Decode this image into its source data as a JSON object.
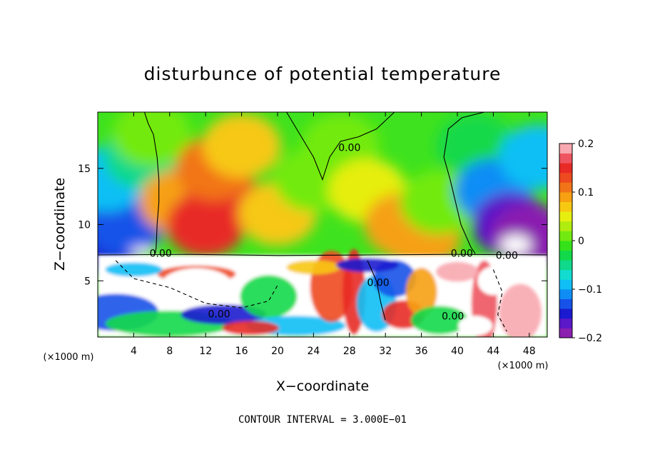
{
  "chart_data": {
    "type": "heatmap",
    "title": "disturbunce of potential temperature",
    "xlabel": "X−coordinate",
    "ylabel": "Z−coordinate",
    "x_unit": "(×1000 m)",
    "y_unit": "(×1000 m)",
    "xlim": [
      0,
      50
    ],
    "ylim": [
      0,
      20
    ],
    "x_ticks": [
      4,
      8,
      12,
      16,
      20,
      24,
      28,
      32,
      36,
      40,
      44,
      48
    ],
    "x_tick_labels": [
      "4",
      "8",
      "12",
      "16",
      "20",
      "24",
      "28",
      "32",
      "36",
      "40",
      "44",
      "48"
    ],
    "y_ticks": [
      5,
      10,
      15
    ],
    "y_tick_labels": [
      "5",
      "10",
      "15"
    ],
    "colorbar": {
      "range": [
        -0.2,
        0.2
      ],
      "ticks": [
        0.2,
        0.1,
        0,
        -0.1,
        -0.2
      ],
      "tick_labels": [
        "0.2",
        "0.1",
        "0",
        "−0.1",
        "−0.2"
      ],
      "colors": [
        "#8a1fb0",
        "#5a18c8",
        "#1a1ad0",
        "#1652e8",
        "#0f8df5",
        "#10bff5",
        "#12dcd0",
        "#10d98c",
        "#12d94a",
        "#35e21a",
        "#72ea10",
        "#b0ec10",
        "#e6ee10",
        "#f7c812",
        "#f6a012",
        "#f27418",
        "#ee4a20",
        "#e82a26",
        "#ee5560",
        "#f8a8b0"
      ]
    },
    "contour_label": "0.00",
    "contour_interval_note": "CONTOUR INTERVAL = 3.000E−01",
    "upper_layer_field": [
      {
        "x": 1,
        "z": 8.5,
        "v": -0.15
      },
      {
        "x": 3,
        "z": 10,
        "v": -0.14
      },
      {
        "x": 1,
        "z": 14,
        "v": -0.1
      },
      {
        "x": 5,
        "z": 16,
        "v": -0.05
      },
      {
        "x": 6,
        "z": 18,
        "v": 0.0
      },
      {
        "x": 9,
        "z": 12,
        "v": 0.09
      },
      {
        "x": 12,
        "z": 10,
        "v": 0.15
      },
      {
        "x": 14,
        "z": 12,
        "v": 0.14
      },
      {
        "x": 13,
        "z": 15,
        "v": 0.1
      },
      {
        "x": 16,
        "z": 17,
        "v": 0.06
      },
      {
        "x": 20,
        "z": 11,
        "v": 0.06
      },
      {
        "x": 24,
        "z": 14,
        "v": 0.01
      },
      {
        "x": 27,
        "z": 17,
        "v": 0.02
      },
      {
        "x": 30,
        "z": 13,
        "v": 0.04
      },
      {
        "x": 34,
        "z": 10,
        "v": 0.08
      },
      {
        "x": 36,
        "z": 9,
        "v": 0.09
      },
      {
        "x": 38,
        "z": 12,
        "v": 0.02
      },
      {
        "x": 42,
        "z": 17,
        "v": -0.03
      },
      {
        "x": 44,
        "z": 13,
        "v": -0.12
      },
      {
        "x": 46,
        "z": 10,
        "v": -0.18
      },
      {
        "x": 48,
        "z": 9,
        "v": -0.2
      },
      {
        "x": 49,
        "z": 16,
        "v": -0.09
      }
    ]
  }
}
